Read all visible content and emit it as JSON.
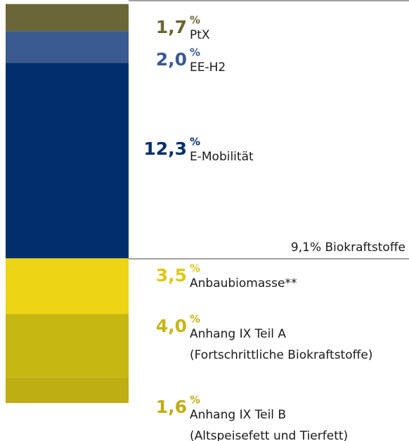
{
  "chart_data": {
    "type": "stacked-bar",
    "categories": [
      "PtX",
      "EE-H2",
      "E-Mobilität",
      "Anbaubiomasse**",
      "Anhang IX Teil A",
      "Anhang IX Teil B"
    ],
    "category_notes": [
      null,
      null,
      null,
      null,
      "(Fortschrittliche Biokraftstoffe)",
      "(Altspeisefett und Tierfett)"
    ],
    "values": [
      1.7,
      2.0,
      12.3,
      3.5,
      4.0,
      1.6
    ],
    "value_labels": [
      "1,7",
      "2,0",
      "12,3",
      "3,5",
      "4,0",
      "1,6"
    ],
    "unit": "%",
    "colors": [
      "#6b6637",
      "#3c5a92",
      "#002f6c",
      "#ecd514",
      "#c6b713",
      "#bfad14"
    ],
    "label_colors": [
      "#6b6637",
      "#3c5a92",
      "#002f6c",
      "#e0c814",
      "#c6b713",
      "#bfad14"
    ],
    "annotation": "9,1% Biokraftstoffe"
  }
}
